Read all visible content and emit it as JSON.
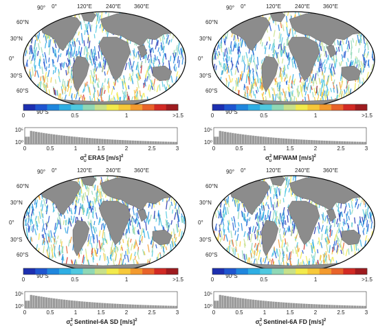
{
  "map_labels": {
    "lon": [
      "0°",
      "120°E",
      "240°E",
      "360°E"
    ],
    "lon_top": "90°",
    "lat": [
      "60°N",
      "30°N",
      "0°",
      "30°S",
      "60°S"
    ],
    "lat_bottom": "90°S"
  },
  "colorbar": {
    "ticks": [
      "0",
      "0.5",
      "1",
      ">1.5"
    ],
    "colors": [
      "#1d2fb0",
      "#1f55d0",
      "#1f86dd",
      "#2eaee3",
      "#4fc8df",
      "#8fd8b6",
      "#c8e08a",
      "#f2ea4c",
      "#f6c83a",
      "#f39a2e",
      "#e8632a",
      "#d22a24",
      "#9e1b1f"
    ]
  },
  "histogram": {
    "x_ticks": [
      "0",
      "0.5",
      "1",
      "1.5",
      "2",
      "2.5",
      "3"
    ],
    "y_ticks": [
      "10⁵",
      "10⁰"
    ]
  },
  "panels": [
    {
      "id": "era5",
      "title_sym": "σ",
      "title_sup": "2",
      "title_sub": "U",
      "title_text": " ERA5 [m/s]",
      "title_unit_sup": "2"
    },
    {
      "id": "mfwam",
      "title_sym": "σ",
      "title_sup": "2",
      "title_sub": "U",
      "title_text": " MFWAM [m/s]",
      "title_unit_sup": "2"
    },
    {
      "id": "s6sd",
      "title_sym": "σ",
      "title_sup": "2",
      "title_sub": "U",
      "title_text": " Sentinel-6A SD [m/s]",
      "title_unit_sup": "2"
    },
    {
      "id": "s6fd",
      "title_sym": "σ",
      "title_sup": "2",
      "title_sub": "U",
      "title_text": " Sentinel-6A FD [m/s]",
      "title_unit_sup": "2"
    }
  ]
}
